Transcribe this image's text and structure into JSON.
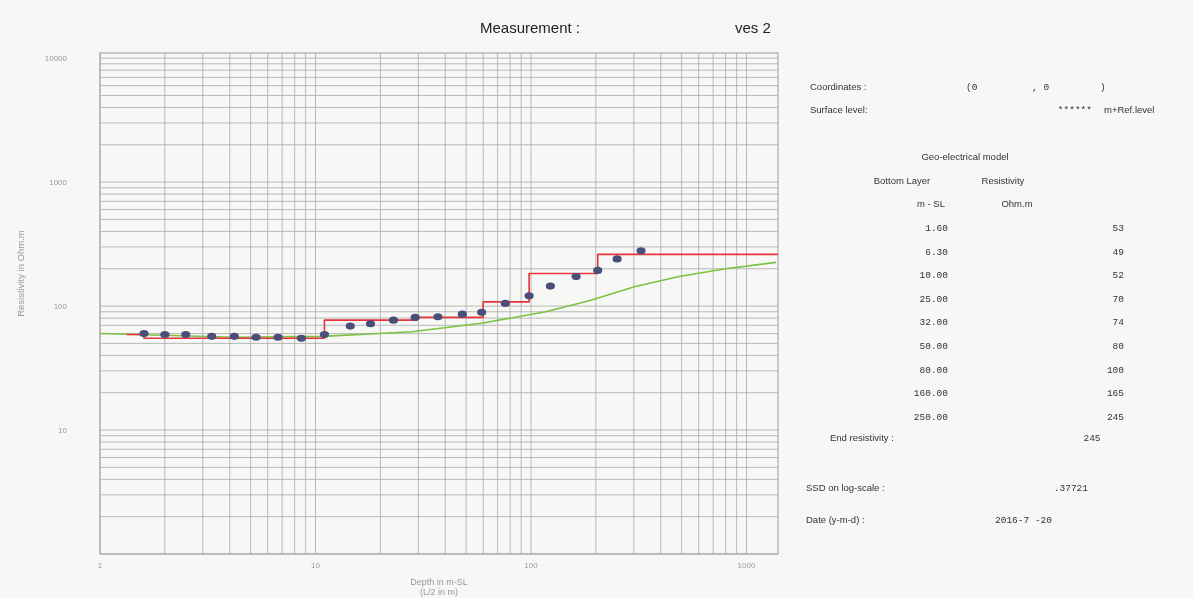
{
  "chart_data": [
    {
      "type": "scatter",
      "title": "Measurement :",
      "subtitle": "ves 2",
      "xlabel": "Depth in m-SL\n(L/2 in m)",
      "ylabel": "Resistivity in Ohm.m",
      "log": "xy",
      "grid": true,
      "xlim": [
        1,
        1400
      ],
      "xticks": [
        1,
        10,
        100,
        1000
      ],
      "ylim": [
        1,
        11000
      ],
      "yticks": [
        10,
        100,
        1000,
        10000
      ],
      "series": [
        {
          "type": "line",
          "color": "#7cc242",
          "x": [
            1,
            4.2,
            10.8,
            28,
            60,
            117,
            188,
            302,
            487,
            785,
            1370
          ],
          "values": [
            60,
            56,
            57,
            62,
            73,
            90,
            111,
            143,
            173,
            199,
            225
          ]
        },
        {
          "type": "step",
          "color": "#e8323c",
          "x": [
            1.33,
            1.6,
            11,
            29.5,
            60,
            98,
            204,
            1400
          ],
          "values": [
            59,
            55,
            77,
            81,
            108,
            183,
            261,
            261
          ]
        },
        {
          "type": "scatter",
          "marker": "circle",
          "color": "#4a4f7a",
          "x": [
            1.6,
            2,
            2.5,
            3.3,
            4.2,
            5.3,
            6.7,
            8.6,
            11,
            14.5,
            18,
            23,
            29,
            37,
            48,
            59,
            76,
            98,
            123,
            162,
            204,
            251,
            324
          ],
          "values": [
            60,
            59,
            59,
            57,
            57,
            56,
            56,
            55,
            59,
            69,
            72,
            77,
            81,
            82,
            86,
            89,
            105,
            121,
            145,
            173,
            194,
            240,
            279
          ]
        }
      ]
    },
    {
      "type": "other",
      "title": "Geo-electrical model",
      "xlabel": "Bottom Layer",
      "ylabel": "Resistivity",
      "categories": [
        "1.60",
        "6.30",
        "10.00",
        "25.00",
        "32.00",
        "50.00",
        "80.00",
        "160.00",
        "250.00"
      ],
      "values": [
        53,
        49,
        52,
        70,
        74,
        80,
        100,
        165,
        245
      ],
      "data_labels": true,
      "annotations": [
        "Coordinates :",
        "(0",
        ", 0",
        ")",
        "Surface level:",
        "******",
        "m+Ref.level",
        "m - SL",
        "Ohm.m",
        "End resistivity :",
        "245",
        "SSD on log-scale :",
        ".37721",
        "Date (y-m-d) :",
        "2016-7 -20"
      ]
    }
  ]
}
